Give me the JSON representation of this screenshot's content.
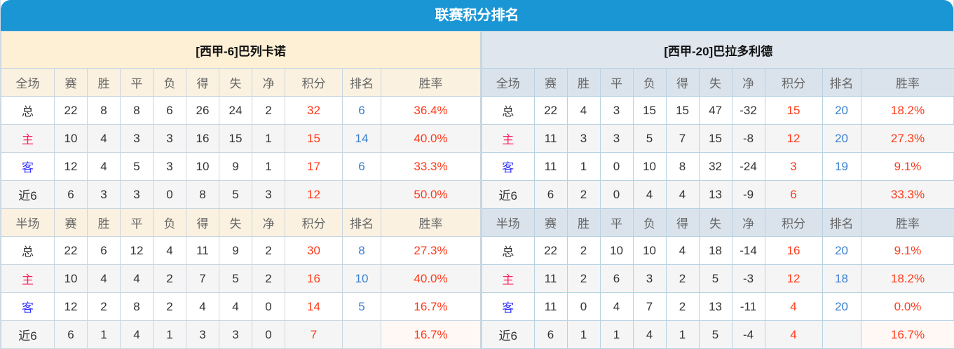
{
  "title": "联赛积分排名",
  "colors": {
    "header": "#1a96d4",
    "points": "#ff3a1a",
    "rank": "#3a7fcf",
    "home": "#ff2060",
    "away": "#3333ff"
  },
  "columns": [
    "赛",
    "胜",
    "平",
    "负",
    "得",
    "失",
    "净",
    "积分",
    "排名",
    "胜率"
  ],
  "teams": [
    {
      "name": "[西甲-6]巴列卡诺",
      "sections": [
        {
          "label": "全场",
          "rows": [
            [
              "总",
              "22",
              "8",
              "8",
              "6",
              "26",
              "24",
              "2",
              "32",
              "6",
              "36.4%"
            ],
            [
              "主",
              "10",
              "4",
              "3",
              "3",
              "16",
              "15",
              "1",
              "15",
              "14",
              "40.0%"
            ],
            [
              "客",
              "12",
              "4",
              "5",
              "3",
              "10",
              "9",
              "1",
              "17",
              "6",
              "33.3%"
            ],
            [
              "近6",
              "6",
              "3",
              "3",
              "0",
              "8",
              "5",
              "3",
              "12",
              "",
              "50.0%"
            ]
          ]
        },
        {
          "label": "半场",
          "rows": [
            [
              "总",
              "22",
              "6",
              "12",
              "4",
              "11",
              "9",
              "2",
              "30",
              "8",
              "27.3%"
            ],
            [
              "主",
              "10",
              "4",
              "4",
              "2",
              "7",
              "5",
              "2",
              "16",
              "10",
              "40.0%"
            ],
            [
              "客",
              "12",
              "2",
              "8",
              "2",
              "4",
              "4",
              "0",
              "14",
              "5",
              "16.7%"
            ],
            [
              "近6",
              "6",
              "1",
              "4",
              "1",
              "3",
              "3",
              "0",
              "7",
              "",
              "16.7%"
            ]
          ]
        }
      ]
    },
    {
      "name": "[西甲-20]巴拉多利德",
      "sections": [
        {
          "label": "全场",
          "rows": [
            [
              "总",
              "22",
              "4",
              "3",
              "15",
              "15",
              "47",
              "-32",
              "15",
              "20",
              "18.2%"
            ],
            [
              "主",
              "11",
              "3",
              "3",
              "5",
              "7",
              "15",
              "-8",
              "12",
              "20",
              "27.3%"
            ],
            [
              "客",
              "11",
              "1",
              "0",
              "10",
              "8",
              "32",
              "-24",
              "3",
              "19",
              "9.1%"
            ],
            [
              "近6",
              "6",
              "2",
              "0",
              "4",
              "4",
              "13",
              "-9",
              "6",
              "",
              "33.3%"
            ]
          ]
        },
        {
          "label": "半场",
          "rows": [
            [
              "总",
              "22",
              "2",
              "10",
              "10",
              "4",
              "18",
              "-14",
              "16",
              "20",
              "9.1%"
            ],
            [
              "主",
              "11",
              "2",
              "6",
              "3",
              "2",
              "5",
              "-3",
              "12",
              "18",
              "18.2%"
            ],
            [
              "客",
              "11",
              "0",
              "4",
              "7",
              "2",
              "13",
              "-11",
              "4",
              "20",
              "0.0%"
            ],
            [
              "近6",
              "6",
              "1",
              "1",
              "4",
              "1",
              "5",
              "-4",
              "4",
              "",
              "16.7%"
            ]
          ]
        }
      ]
    }
  ]
}
